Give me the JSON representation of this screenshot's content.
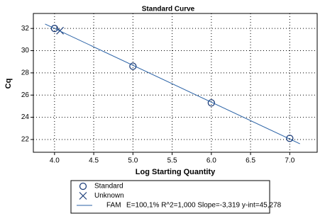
{
  "chart_data": {
    "type": "scatter",
    "title": "Standard Curve",
    "xlabel": "Log Starting Quantity",
    "ylabel": "Cq",
    "xlim": [
      3.73,
      7.35
    ],
    "ylim": [
      20.85,
      33.35
    ],
    "xticks": [
      {
        "value": 4,
        "label": "4.0"
      },
      {
        "value": 4.5,
        "label": "4.5"
      },
      {
        "value": 5,
        "label": "5.0"
      },
      {
        "value": 5.5,
        "label": "5.5"
      },
      {
        "value": 6,
        "label": "6.0"
      },
      {
        "value": 6.5,
        "label": "6.5"
      },
      {
        "value": 7,
        "label": "7.0"
      }
    ],
    "yticks": [
      22,
      24,
      26,
      28,
      30,
      32
    ],
    "grid": true,
    "series": [
      {
        "name": "Standard",
        "color": "#1f3f7a",
        "marker": "circle",
        "x": [
          4,
          5,
          6,
          7
        ],
        "values": [
          32.0,
          28.6,
          25.3,
          22.1
        ]
      },
      {
        "name": "Unknown",
        "color": "#1f3f7a",
        "marker": "x",
        "x": [
          4.07
        ],
        "values": [
          31.8
        ]
      },
      {
        "name": "FAM",
        "color": "#2a62a6",
        "marker": "line",
        "x": [
          3.88,
          7.13
        ],
        "values": [
          32.4,
          21.61
        ]
      }
    ],
    "annotation": "E=100,1% R^2=1,000 Slope=-3,319 y-int=45,278"
  }
}
